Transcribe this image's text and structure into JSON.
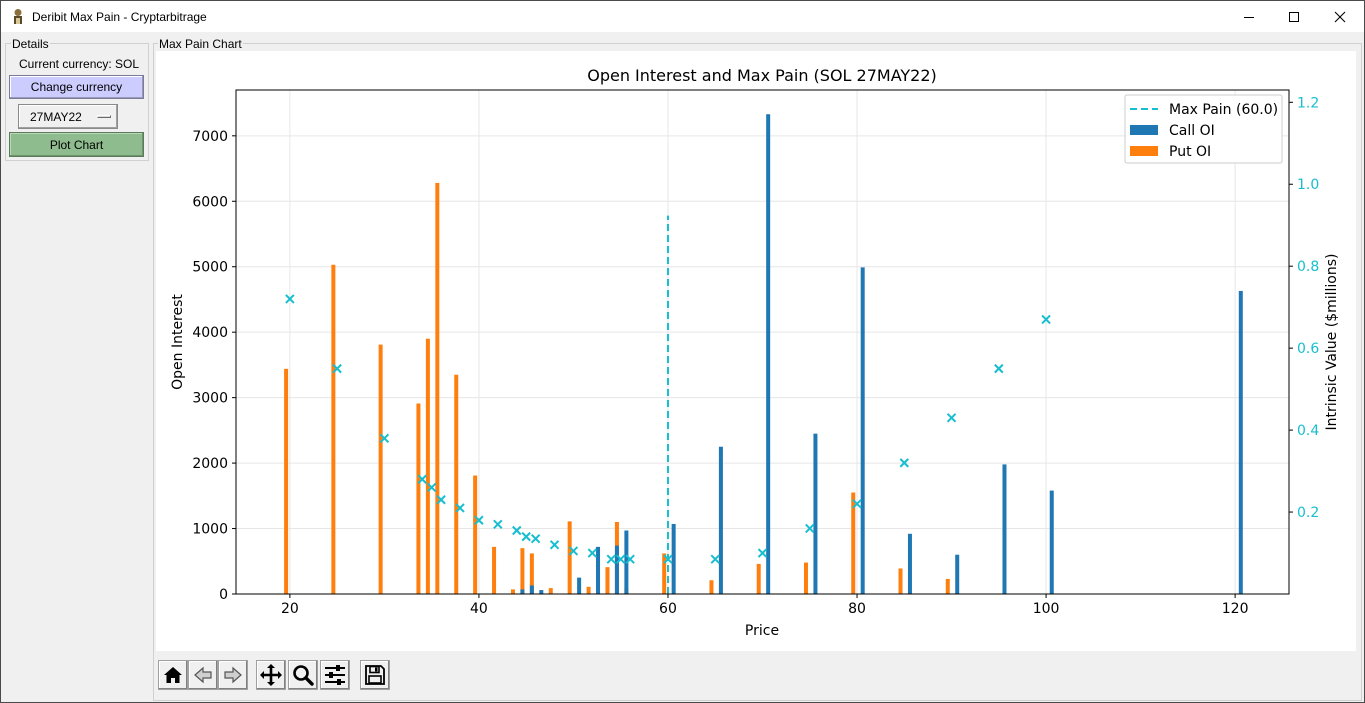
{
  "window": {
    "title": "Deribit Max Pain - Cryptarbitrage"
  },
  "details": {
    "frame_label": "Details",
    "current_currency_label": "Current currency: SOL",
    "change_currency_button": "Change currency",
    "expiry_selected": "27MAY22",
    "plot_button": "Plot Chart"
  },
  "chart_frame": {
    "label": "Max Pain Chart"
  },
  "toolbar": {
    "buttons": [
      "home-icon",
      "back-arrow-icon",
      "forward-arrow-icon",
      "pan-icon",
      "zoom-icon",
      "configure-subplots-icon",
      "save-icon"
    ]
  },
  "colors": {
    "call": "#1f77b4",
    "put": "#ff7f0e",
    "intrinsic": "#17becf",
    "change_button_bg": "#ccccff",
    "plot_button_bg": "#8fbc8f"
  },
  "chart_data": {
    "type": "bar",
    "title": "Open Interest and Max Pain (SOL 27MAY22)",
    "xlabel": "Price",
    "ylabel": "Open Interest",
    "y2label": "Intrinsic Value ($millions)",
    "xlim": [
      14.3,
      125.7
    ],
    "ylim": [
      0,
      7700
    ],
    "y2lim": [
      0.0,
      1.23
    ],
    "xticks": [
      "20",
      "40",
      "60",
      "80",
      "100",
      "120"
    ],
    "yticks": [
      "0",
      "1000",
      "2000",
      "3000",
      "4000",
      "5000",
      "6000",
      "7000"
    ],
    "y2ticks": [
      "0.2",
      "0.4",
      "0.6",
      "0.8",
      "1.0",
      "1.2"
    ],
    "grid": true,
    "legend_position": "top-right",
    "legend": [
      "Max Pain (60.0)",
      "Call OI",
      "Put OI"
    ],
    "max_pain": 60.0,
    "max_pain_line_top": 5780,
    "call_oi": {
      "name": "Call OI",
      "x": [
        44.6,
        45.6,
        46.6,
        50.6,
        52.6,
        54.6,
        55.6,
        60.6,
        65.6,
        70.6,
        75.6,
        80.6,
        85.6,
        90.6,
        95.6,
        100.6,
        120.6
      ],
      "values": [
        70,
        130,
        60,
        250,
        720,
        740,
        970,
        1070,
        2250,
        7330,
        2450,
        4990,
        920,
        600,
        1980,
        1580,
        4630
      ]
    },
    "put_oi": {
      "name": "Put OI",
      "x": [
        19.6,
        24.6,
        29.6,
        33.6,
        34.6,
        35.6,
        37.6,
        39.6,
        41.6,
        43.6,
        44.6,
        45.6,
        47.6,
        49.6,
        51.6,
        53.6,
        54.6,
        55.6,
        59.6,
        64.6,
        69.6,
        74.6,
        79.6,
        84.6,
        89.6
      ],
      "values": [
        3440,
        5030,
        3810,
        2910,
        3900,
        6280,
        3350,
        1810,
        720,
        70,
        700,
        620,
        90,
        1110,
        110,
        410,
        1100,
        90,
        620,
        210,
        460,
        480,
        1550,
        390,
        230
      ]
    },
    "intrinsic_value": {
      "x": [
        20,
        25,
        30,
        34,
        35,
        36,
        38,
        40,
        42,
        44,
        45,
        46,
        48,
        50,
        52,
        54,
        55,
        56,
        60,
        65,
        70,
        75,
        80,
        85,
        90,
        95,
        100,
        120
      ],
      "values": [
        0.72,
        0.55,
        0.38,
        0.28,
        0.26,
        0.23,
        0.21,
        0.18,
        0.17,
        0.155,
        0.14,
        0.135,
        0.12,
        0.105,
        0.1,
        0.085,
        0.085,
        0.085,
        0.085,
        0.085,
        0.1,
        0.16,
        0.22,
        0.32,
        0.43,
        0.55,
        0.67,
        1.2
      ]
    }
  }
}
